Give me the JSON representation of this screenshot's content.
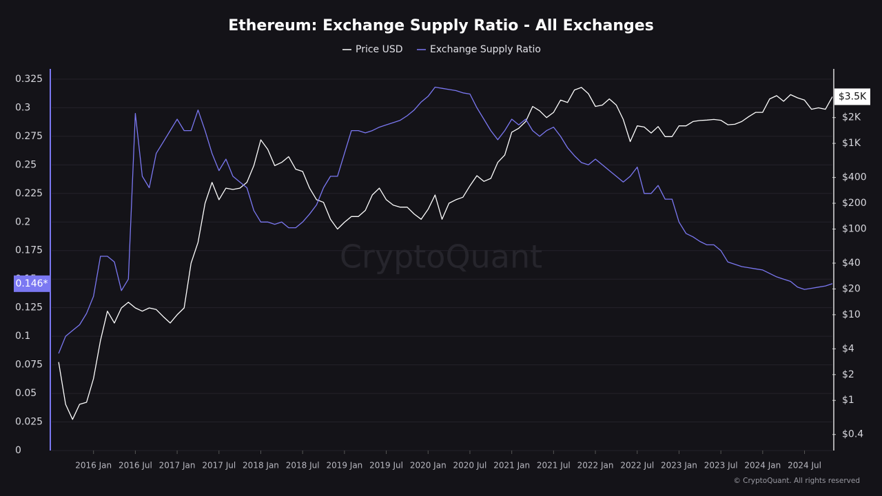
{
  "chart_data": {
    "type": "line",
    "title": "Ethereum: Exchange Supply Ratio - All Exchanges",
    "watermark": "CryptoQuant",
    "footer": "© CryptoQuant. All rights reserved",
    "x": [
      "2015-08",
      "2015-09",
      "2015-10",
      "2015-11",
      "2015-12",
      "2016-01",
      "2016-02",
      "2016-03",
      "2016-04",
      "2016-05",
      "2016-06",
      "2016-07",
      "2016-08",
      "2016-09",
      "2016-10",
      "2016-11",
      "2016-12",
      "2017-01",
      "2017-02",
      "2017-03",
      "2017-04",
      "2017-05",
      "2017-06",
      "2017-07",
      "2017-08",
      "2017-09",
      "2017-10",
      "2017-11",
      "2017-12",
      "2018-01",
      "2018-02",
      "2018-03",
      "2018-04",
      "2018-05",
      "2018-06",
      "2018-07",
      "2018-08",
      "2018-09",
      "2018-10",
      "2018-11",
      "2018-12",
      "2019-01",
      "2019-02",
      "2019-03",
      "2019-04",
      "2019-05",
      "2019-06",
      "2019-07",
      "2019-08",
      "2019-09",
      "2019-10",
      "2019-11",
      "2019-12",
      "2020-01",
      "2020-02",
      "2020-03",
      "2020-04",
      "2020-05",
      "2020-06",
      "2020-07",
      "2020-08",
      "2020-09",
      "2020-10",
      "2020-11",
      "2020-12",
      "2021-01",
      "2021-02",
      "2021-03",
      "2021-04",
      "2021-05",
      "2021-06",
      "2021-07",
      "2021-08",
      "2021-09",
      "2021-10",
      "2021-11",
      "2021-12",
      "2022-01",
      "2022-02",
      "2022-03",
      "2022-04",
      "2022-05",
      "2022-06",
      "2022-07",
      "2022-08",
      "2022-09",
      "2022-10",
      "2022-11",
      "2022-12",
      "2023-01",
      "2023-02",
      "2023-03",
      "2023-04",
      "2023-05",
      "2023-06",
      "2023-07",
      "2023-08",
      "2023-09",
      "2023-10",
      "2023-11",
      "2023-12",
      "2024-01",
      "2024-02",
      "2024-03",
      "2024-04",
      "2024-05",
      "2024-06",
      "2024-07",
      "2024-08",
      "2024-09",
      "2024-10",
      "2024-11"
    ],
    "xlim": [
      "2015-07",
      "2024-11"
    ],
    "xticks": [
      {
        "value": "2016-01",
        "label": "2016 Jan"
      },
      {
        "value": "2016-07",
        "label": "2016 Jul"
      },
      {
        "value": "2017-01",
        "label": "2017 Jan"
      },
      {
        "value": "2017-07",
        "label": "2017 Jul"
      },
      {
        "value": "2018-01",
        "label": "2018 Jan"
      },
      {
        "value": "2018-07",
        "label": "2018 Jul"
      },
      {
        "value": "2019-01",
        "label": "2019 Jan"
      },
      {
        "value": "2019-07",
        "label": "2019 Jul"
      },
      {
        "value": "2020-01",
        "label": "2020 Jan"
      },
      {
        "value": "2020-07",
        "label": "2020 Jul"
      },
      {
        "value": "2021-01",
        "label": "2021 Jan"
      },
      {
        "value": "2021-07",
        "label": "2021 Jul"
      },
      {
        "value": "2022-01",
        "label": "2022 Jan"
      },
      {
        "value": "2022-07",
        "label": "2022 Jul"
      },
      {
        "value": "2023-01",
        "label": "2023 Jan"
      },
      {
        "value": "2023-07",
        "label": "2023 Jul"
      },
      {
        "value": "2024-01",
        "label": "2024 Jan"
      },
      {
        "value": "2024-07",
        "label": "2024 Jul"
      }
    ],
    "ylim": [
      0,
      0.334
    ],
    "yticks": [
      0,
      0.025,
      0.05,
      0.075,
      0.1,
      0.125,
      0.15,
      0.175,
      0.2,
      0.225,
      0.25,
      0.275,
      0.3,
      0.325
    ],
    "y2lim": [
      0.26,
      7400
    ],
    "y2log": true,
    "y2ticks": [
      {
        "value": 0.4,
        "label": "$0.4"
      },
      {
        "value": 1,
        "label": "$1"
      },
      {
        "value": 2,
        "label": "$2"
      },
      {
        "value": 4,
        "label": "$4"
      },
      {
        "value": 10,
        "label": "$10"
      },
      {
        "value": 20,
        "label": "$20"
      },
      {
        "value": 40,
        "label": "$40"
      },
      {
        "value": 100,
        "label": "$100"
      },
      {
        "value": 200,
        "label": "$200"
      },
      {
        "value": 400,
        "label": "$400"
      },
      {
        "value": 1000,
        "label": "$1K"
      },
      {
        "value": 2000,
        "label": "$2K"
      }
    ],
    "grid": true,
    "legend": "top",
    "series": [
      {
        "name": "Price USD",
        "color": "#ffffff",
        "axis": "y2",
        "end_label": "$3.5K",
        "values": [
          2.8,
          0.9,
          0.6,
          0.9,
          0.95,
          1.8,
          5,
          11,
          8,
          12,
          14,
          12,
          11,
          12,
          11.5,
          9.5,
          8,
          10,
          12,
          40,
          70,
          200,
          350,
          220,
          300,
          290,
          300,
          350,
          550,
          1100,
          850,
          550,
          600,
          700,
          500,
          470,
          300,
          220,
          205,
          130,
          100,
          120,
          140,
          140,
          165,
          250,
          300,
          220,
          190,
          180,
          180,
          150,
          130,
          170,
          250,
          130,
          200,
          220,
          235,
          320,
          420,
          360,
          390,
          600,
          730,
          1350,
          1500,
          1800,
          2700,
          2400,
          2000,
          2300,
          3200,
          3000,
          4200,
          4500,
          3800,
          2700,
          2800,
          3300,
          2800,
          1900,
          1050,
          1600,
          1550,
          1320,
          1570,
          1200,
          1200,
          1600,
          1600,
          1800,
          1850,
          1870,
          1900,
          1860,
          1650,
          1670,
          1800,
          2050,
          2300,
          2300,
          3300,
          3600,
          3100,
          3700,
          3400,
          3200,
          2500,
          2600,
          2500,
          3500
        ]
      },
      {
        "name": "Exchange Supply Ratio",
        "color": "#7b78f2",
        "axis": "y",
        "end_label": "0.146*",
        "values": [
          0.085,
          0.1,
          0.105,
          0.11,
          0.12,
          0.135,
          0.17,
          0.17,
          0.165,
          0.14,
          0.15,
          0.295,
          0.24,
          0.23,
          0.26,
          0.27,
          0.28,
          0.29,
          0.28,
          0.28,
          0.298,
          0.28,
          0.26,
          0.245,
          0.255,
          0.24,
          0.235,
          0.23,
          0.21,
          0.2,
          0.2,
          0.198,
          0.2,
          0.195,
          0.195,
          0.2,
          0.207,
          0.215,
          0.23,
          0.24,
          0.24,
          0.26,
          0.28,
          0.28,
          0.278,
          0.28,
          0.283,
          0.285,
          0.287,
          0.289,
          0.293,
          0.298,
          0.305,
          0.31,
          0.318,
          0.317,
          0.316,
          0.315,
          0.313,
          0.312,
          0.3,
          0.29,
          0.28,
          0.272,
          0.28,
          0.29,
          0.285,
          0.29,
          0.28,
          0.275,
          0.28,
          0.283,
          0.275,
          0.265,
          0.258,
          0.252,
          0.25,
          0.255,
          0.25,
          0.245,
          0.24,
          0.235,
          0.24,
          0.248,
          0.225,
          0.225,
          0.232,
          0.22,
          0.22,
          0.2,
          0.19,
          0.187,
          0.183,
          0.18,
          0.18,
          0.175,
          0.165,
          0.163,
          0.161,
          0.16,
          0.159,
          0.158,
          0.155,
          0.152,
          0.15,
          0.148,
          0.143,
          0.141,
          0.142,
          0.143,
          0.144,
          0.146
        ]
      }
    ]
  }
}
